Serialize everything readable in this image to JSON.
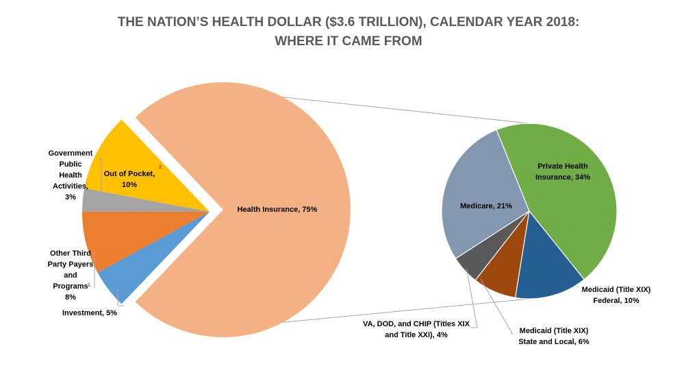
{
  "chart_data": {
    "type": "pie-of-pie",
    "title": {
      "line1": "THE NATION’S HEALTH DOLLAR ($3.6 TRILLION), CALENDAR YEAR 2018:",
      "line2": "WHERE IT CAME FROM"
    },
    "unit": "%",
    "main_pie": {
      "slices": [
        {
          "key": "health_insurance",
          "name": "Health Insurance",
          "value": 75,
          "color": "#f4b183",
          "label_lines": [
            "Health Insurance, 75%"
          ],
          "footnote": "",
          "exploded": false
        },
        {
          "key": "investment",
          "name": "Investment",
          "value": 5,
          "color": "#5b9bd5",
          "label_lines": [
            "Investment, 5%"
          ],
          "footnote": "",
          "exploded": true
        },
        {
          "key": "other_third_party",
          "name": "Other Third Party Payers and Programs",
          "value": 8,
          "color": "#ed7d31",
          "label_lines": [
            "Other Third",
            "Party Payers",
            "and",
            "Programs",
            "8%"
          ],
          "footnote": "1",
          "exploded": true
        },
        {
          "key": "gov_public_health",
          "name": "Government Public Health Activities",
          "value": 3,
          "color": "#a5a5a5",
          "label_lines": [
            "Government",
            "Public",
            "Health",
            "Activities,",
            "3%"
          ],
          "footnote": "",
          "exploded": true
        },
        {
          "key": "out_of_pocket",
          "name": "Out of Pocket",
          "value": 10,
          "color": "#ffc000",
          "label_lines": [
            "Out of Pocket,",
            "10%"
          ],
          "footnote": "2",
          "exploded": true
        }
      ]
    },
    "secondary_pie": {
      "parent": "Health Insurance",
      "slices": [
        {
          "key": "private",
          "name": "Private Health Insurance",
          "value": 34,
          "color": "#70ad47",
          "label_lines": [
            "Private Health",
            "Insurance, 34%"
          ]
        },
        {
          "key": "medicaid_federal",
          "name": "Medicaid (Title XIX) Federal",
          "value": 10,
          "color": "#255e91",
          "label_lines": [
            "Medicaid (Title XIX)",
            "Federal, 10%"
          ]
        },
        {
          "key": "medicaid_state",
          "name": "Medicaid (Title XIX) State and Local",
          "value": 6,
          "color": "#9e480e",
          "label_lines": [
            "Medicaid (Title XIX)",
            "State and Local, 6%"
          ]
        },
        {
          "key": "va_dod_chip",
          "name": "VA, DOD, and CHIP (Titles XIX and Title XXI)",
          "value": 4,
          "color": "#595959",
          "label_lines": [
            "VA, DOD, and CHIP (Titles XIX",
            "and Title XXI), 4%"
          ]
        },
        {
          "key": "medicare",
          "name": "Medicare",
          "value": 21,
          "color": "#8497b0",
          "label_lines": [
            "Medicare, 21%"
          ]
        }
      ]
    }
  }
}
